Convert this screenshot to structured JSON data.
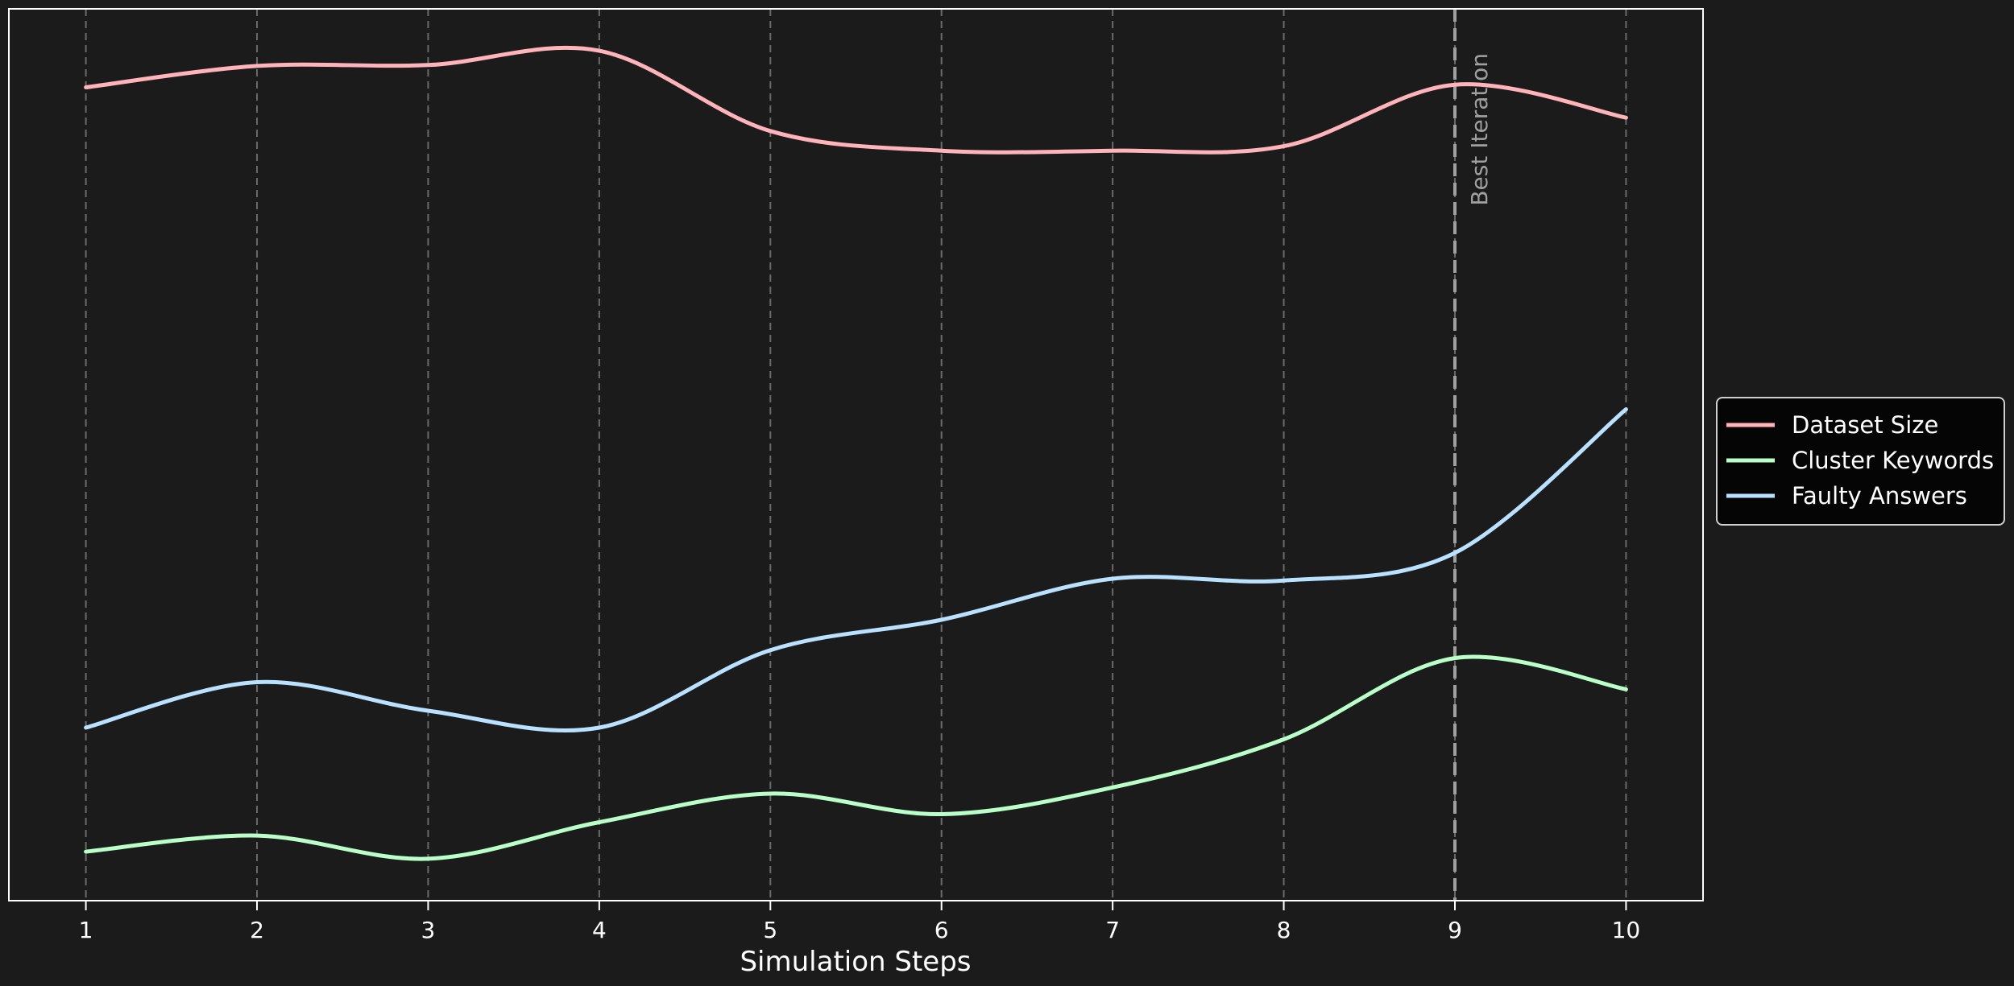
{
  "chart_data": {
    "type": "line",
    "title": "",
    "xlabel": "Simulation Steps",
    "ylabel": "",
    "x": [
      1,
      2,
      3,
      4,
      5,
      6,
      7,
      8,
      9,
      10
    ],
    "xlim": [
      0.55,
      10.45
    ],
    "ylim": [
      0,
      100
    ],
    "y_ticks_shown": false,
    "grid": {
      "x": true,
      "y": false,
      "style": "dashed"
    },
    "legend": {
      "placement": "right-center, outside plot"
    },
    "series": [
      {
        "name": "Dataset Size",
        "color": "#ffb3ba",
        "values": [
          91.2,
          93.6,
          93.7,
          95.3,
          86.3,
          84.1,
          84.1,
          84.6,
          91.5,
          87.8
        ]
      },
      {
        "name": "Cluster Keywords",
        "color": "#baffc9",
        "values": [
          5.5,
          7.3,
          4.7,
          8.8,
          12.0,
          9.7,
          12.7,
          18.1,
          27.2,
          23.7
        ]
      },
      {
        "name": "Faulty Answers",
        "color": "#bae1ff",
        "values": [
          19.4,
          24.5,
          21.3,
          19.4,
          28.1,
          31.5,
          36.1,
          35.9,
          39.0,
          55.1
        ]
      }
    ],
    "annotations": [
      {
        "type": "vline",
        "x": 9,
        "label": "Best Iteration",
        "style": "dashed",
        "color": "#a0a0a0"
      }
    ],
    "colors": {
      "background": "#1b1b1b",
      "frame": "#ffffff",
      "grid": "#6a6a6a",
      "legend_background": "#050505",
      "legend_border": "#cfcfcf",
      "text": "#ffffff"
    }
  }
}
